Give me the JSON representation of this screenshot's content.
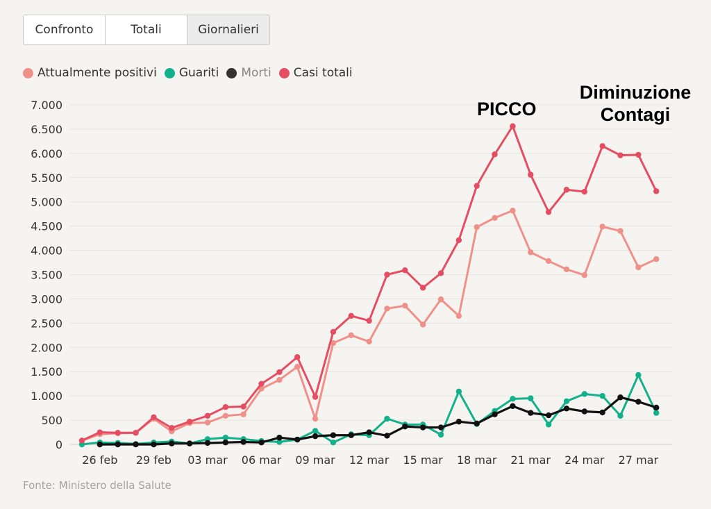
{
  "tabs": [
    {
      "label": "Confronto",
      "active": false
    },
    {
      "label": "Totali",
      "active": false
    },
    {
      "label": "Giornalieri",
      "active": true
    }
  ],
  "legend": [
    {
      "label": "Attualmente positivi",
      "color": "#f0908a",
      "muted": false
    },
    {
      "label": "Guariti",
      "color": "#13b08c",
      "muted": false
    },
    {
      "label": "Morti",
      "color": "#333333",
      "muted": true
    },
    {
      "label": "Casi totali",
      "color": "#e44d62",
      "muted": false
    }
  ],
  "annotations": {
    "peak": "PICCO",
    "decrease_line1": "Diminuzione",
    "decrease_line2": "Contagi"
  },
  "source": "Fonte: Ministero della Salute",
  "chart_data": {
    "type": "line",
    "title": "",
    "xlabel": "",
    "ylabel": "",
    "ylim": [
      0,
      7000
    ],
    "yticks": [
      0,
      500,
      1000,
      1500,
      2000,
      2500,
      3000,
      3500,
      4000,
      4500,
      5000,
      5500,
      6000,
      6500,
      7000
    ],
    "ytick_labels": [
      "0",
      "500",
      "1.000",
      "1.500",
      "2.000",
      "2.500",
      "3.000",
      "3.500",
      "4.000",
      "4.500",
      "5.000",
      "5.500",
      "6.000",
      "6.500",
      "7.000"
    ],
    "x": [
      "25 feb",
      "26 feb",
      "27 feb",
      "28 feb",
      "29 feb",
      "01 mar",
      "02 mar",
      "03 mar",
      "04 mar",
      "05 mar",
      "06 mar",
      "07 mar",
      "08 mar",
      "09 mar",
      "10 mar",
      "11 mar",
      "12 mar",
      "13 mar",
      "14 mar",
      "15 mar",
      "16 mar",
      "17 mar",
      "18 mar",
      "19 mar",
      "20 mar",
      "21 mar",
      "22 mar",
      "23 mar",
      "24 mar",
      "25 mar",
      "26 mar",
      "27 mar",
      "28 mar",
      "29 mar"
    ],
    "xtick_labels": [
      "26 feb",
      "29 feb",
      "03 mar",
      "06 mar",
      "09 mar",
      "12 mar",
      "15 mar",
      "18 mar",
      "21 mar",
      "24 mar",
      "27 mar"
    ],
    "grid": true,
    "legend_position": "top-left",
    "series": [
      {
        "name": "Attualmente positivi",
        "color": "#f0908a",
        "values": [
          80,
          210,
          230,
          240,
          530,
          270,
          440,
          450,
          590,
          620,
          1150,
          1330,
          1600,
          530,
          2090,
          2250,
          2120,
          2800,
          2860,
          2470,
          2990,
          2650,
          4480,
          4670,
          4820,
          3960,
          3780,
          3610,
          3490,
          4490,
          4400,
          3650,
          3820,
          null
        ]
      },
      {
        "name": "Guariti",
        "color": "#13b08c",
        "values": [
          0,
          40,
          30,
          10,
          40,
          60,
          20,
          110,
          140,
          110,
          70,
          50,
          100,
          280,
          40,
          210,
          190,
          530,
          410,
          410,
          200,
          1090,
          420,
          690,
          940,
          950,
          410,
          890,
          1040,
          1000,
          590,
          1430,
          650,
          null
        ]
      },
      {
        "name": "Morti",
        "color": "#111111",
        "values": [
          null,
          0,
          0,
          0,
          0,
          20,
          20,
          30,
          40,
          50,
          40,
          140,
          100,
          170,
          190,
          190,
          250,
          180,
          370,
          350,
          350,
          470,
          430,
          620,
          790,
          650,
          600,
          740,
          680,
          660,
          970,
          880,
          760,
          null
        ]
      },
      {
        "name": "Casi totali",
        "color": "#e44d62",
        "values": [
          80,
          250,
          240,
          240,
          560,
          340,
          470,
          590,
          770,
          780,
          1250,
          1490,
          1800,
          980,
          2320,
          2650,
          2550,
          3500,
          3590,
          3230,
          3530,
          4210,
          5330,
          5980,
          6560,
          5560,
          4790,
          5250,
          5210,
          6150,
          5960,
          5970,
          5220,
          null
        ]
      }
    ]
  }
}
